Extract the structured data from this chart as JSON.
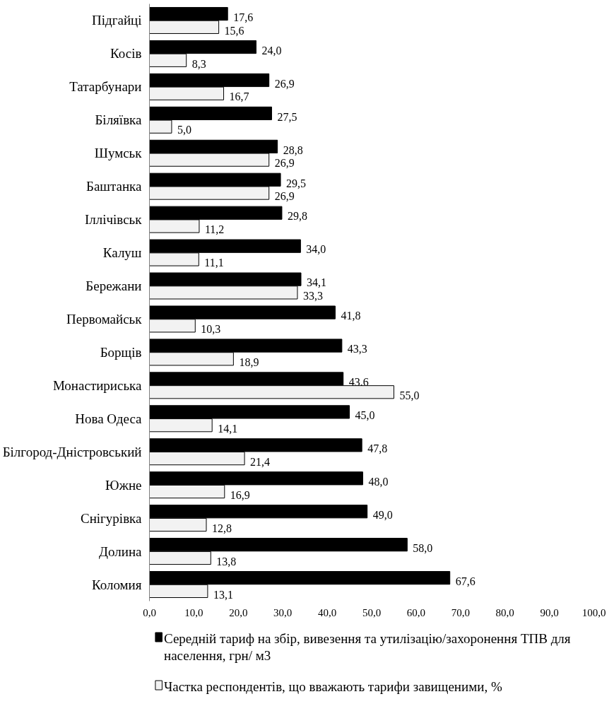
{
  "chart_data": {
    "type": "bar",
    "orientation": "horizontal",
    "categories": [
      "Підгайці",
      "Косів",
      "Татарбунари",
      "Біляївка",
      "Шумськ",
      "Баштанка",
      "Іллічівськ",
      "Калуш",
      "Бережани",
      "Первомайськ",
      "Борщів",
      "Монастириська",
      "Нова Одеса",
      "Білгород-Дністровський",
      "Южне",
      "Снігурівка",
      "Долина",
      "Коломия"
    ],
    "series": [
      {
        "name": "Середній тариф на збір, вивезення та утилізацію/захоронення ТПВ для населення, грн/ м3",
        "color": "#000000",
        "values": [
          17.6,
          24.0,
          26.9,
          27.5,
          28.8,
          29.5,
          29.8,
          34.0,
          34.1,
          41.8,
          43.3,
          43.6,
          45.0,
          47.8,
          48.0,
          49.0,
          58.0,
          67.6
        ],
        "value_labels": [
          "17,6",
          "24,0",
          "26,9",
          "27,5",
          "28,8",
          "29,5",
          "29,8",
          "34,0",
          "34,1",
          "41,8",
          "43,3",
          "43,6",
          "45,0",
          "47,8",
          "48,0",
          "49,0",
          "58,0",
          "67,6"
        ]
      },
      {
        "name": "Частка респондентів, що вважають тарифи завищеними, %",
        "color": "#f2f2f2",
        "values": [
          15.6,
          8.3,
          16.7,
          5.0,
          26.9,
          26.9,
          11.2,
          11.1,
          33.3,
          10.3,
          18.9,
          55.0,
          14.1,
          21.4,
          16.9,
          12.8,
          13.8,
          13.1
        ],
        "value_labels": [
          "15,6",
          "8,3",
          "16,7",
          "5,0",
          "26,9",
          "26,9",
          "11,2",
          "11,1",
          "33,3",
          "10,3",
          "18,9",
          "55,0",
          "14,1",
          "21,4",
          "16,9",
          "12,8",
          "13,8",
          "13,1"
        ]
      }
    ],
    "xlim": [
      0,
      100
    ],
    "xticks": [
      {
        "value": 0,
        "label": "0,0"
      },
      {
        "value": 10,
        "label": "10,0"
      },
      {
        "value": 20,
        "label": "20,0"
      },
      {
        "value": 30,
        "label": "30,0"
      },
      {
        "value": 40,
        "label": "40,0"
      },
      {
        "value": 50,
        "label": "50,0"
      },
      {
        "value": 60,
        "label": "60,0"
      },
      {
        "value": 70,
        "label": "70,0"
      },
      {
        "value": 80,
        "label": "80,0"
      },
      {
        "value": 90,
        "label": "90,0"
      },
      {
        "value": 100,
        "label": "100,0"
      }
    ],
    "grid": false,
    "legend": "bottom"
  }
}
